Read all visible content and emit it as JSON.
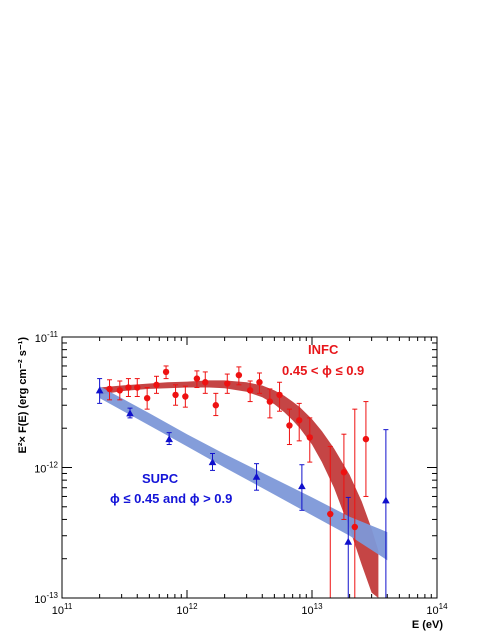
{
  "chart_data": {
    "type": "scatter",
    "title": "",
    "xlabel": "E (eV)",
    "ylabel": "E²× F(E) (erg cm⁻² s⁻¹)",
    "x_scale": "log",
    "y_scale": "log",
    "xlim": [
      100000000000.0,
      100000000000000.0
    ],
    "ylim": [
      1e-13,
      1e-11
    ],
    "x_ticks": [
      {
        "value": 100000000000.0,
        "mantissa": "10",
        "exp": "11"
      },
      {
        "value": 1000000000000.0,
        "mantissa": "10",
        "exp": "12"
      },
      {
        "value": 10000000000000.0,
        "mantissa": "10",
        "exp": "13"
      },
      {
        "value": 100000000000000.0,
        "mantissa": "10",
        "exp": "14"
      }
    ],
    "y_ticks": [
      {
        "value": 1e-13,
        "mantissa": "10",
        "exp": "-13"
      },
      {
        "value": 1e-12,
        "mantissa": "10",
        "exp": "-12"
      },
      {
        "value": 1e-11,
        "mantissa": "10",
        "exp": "-11"
      }
    ],
    "grid": false,
    "legend": "none",
    "annotations": [
      {
        "text": "INFC",
        "color": "#e8161a"
      },
      {
        "text": "0.45 < ϕ ≤ 0.9",
        "color": "#e8161a"
      },
      {
        "text": "SUPC",
        "color": "#1414d8"
      },
      {
        "text": "ϕ ≤ 0.45 and ϕ > 0.9",
        "color": "#1414d8"
      }
    ],
    "series": [
      {
        "marker": "circle",
        "color": "#ee1111",
        "points": [
          {
            "x": 240000000000.0,
            "y": 4e-12,
            "lo": 3.3e-12,
            "hi": 4.7e-12
          },
          {
            "x": 290000000000.0,
            "y": 3.9e-12,
            "lo": 3.3e-12,
            "hi": 4.6e-12
          },
          {
            "x": 340000000000.0,
            "y": 4.1e-12,
            "lo": 3.5e-12,
            "hi": 4.8e-12
          },
          {
            "x": 400000000000.0,
            "y": 4.1e-12,
            "lo": 3.5e-12,
            "hi": 4.8e-12
          },
          {
            "x": 480000000000.0,
            "y": 3.4e-12,
            "lo": 2.8e-12,
            "hi": 4.1e-12
          },
          {
            "x": 570000000000.0,
            "y": 4.3e-12,
            "lo": 3.7e-12,
            "hi": 5e-12
          },
          {
            "x": 680000000000.0,
            "y": 5.4e-12,
            "lo": 4.8e-12,
            "hi": 6e-12
          },
          {
            "x": 810000000000.0,
            "y": 3.6e-12,
            "lo": 3e-12,
            "hi": 4.3e-12
          },
          {
            "x": 970000000000.0,
            "y": 3.5e-12,
            "lo": 2.9e-12,
            "hi": 4.2e-12
          },
          {
            "x": 1200000000000.0,
            "y": 4.8e-12,
            "lo": 4.1e-12,
            "hi": 5.5e-12
          },
          {
            "x": 1400000000000.0,
            "y": 4.5e-12,
            "lo": 3.7e-12,
            "hi": 5.4e-12
          },
          {
            "x": 1700000000000.0,
            "y": 3e-12,
            "lo": 2.5e-12,
            "hi": 3.7e-12
          },
          {
            "x": 2100000000000.0,
            "y": 4.4e-12,
            "lo": 3.7e-12,
            "hi": 5.2e-12
          },
          {
            "x": 2600000000000.0,
            "y": 5.1e-12,
            "lo": 4.3e-12,
            "hi": 5.9e-12
          },
          {
            "x": 3200000000000.0,
            "y": 3.9e-12,
            "lo": 3.2e-12,
            "hi": 4.6e-12
          },
          {
            "x": 3800000000000.0,
            "y": 4.5e-12,
            "lo": 3.7e-12,
            "hi": 5.3e-12
          },
          {
            "x": 4600000000000.0,
            "y": 3.2e-12,
            "lo": 2.4e-12,
            "hi": 4e-12
          },
          {
            "x": 5500000000000.0,
            "y": 3.6e-12,
            "lo": 2.7e-12,
            "hi": 4.5e-12
          },
          {
            "x": 6600000000000.0,
            "y": 2.1e-12,
            "lo": 1.5e-12,
            "hi": 2.8e-12
          },
          {
            "x": 7900000000000.0,
            "y": 2.3e-12,
            "lo": 1.6e-12,
            "hi": 3.1e-12
          },
          {
            "x": 9600000000000.0,
            "y": 1.7e-12,
            "lo": 1.1e-12,
            "hi": 2.4e-12
          },
          {
            "x": 14000000000000.0,
            "y": 4.4e-13,
            "lo": 1e-13,
            "hi": 1.45e-12
          },
          {
            "x": 18000000000000.0,
            "y": 9.2e-13,
            "lo": 4e-13,
            "hi": 1.8e-12
          },
          {
            "x": 22000000000000.0,
            "y": 3.5e-13,
            "lo": 1e-13,
            "hi": 2.8e-12
          },
          {
            "x": 27000000000000.0,
            "y": 1.65e-12,
            "lo": 6e-13,
            "hi": 3.2e-12
          }
        ]
      },
      {
        "marker": "triangle",
        "color": "#1010cc",
        "points": [
          {
            "x": 200000000000.0,
            "y": 3.9e-12,
            "lo": 3.1e-12,
            "hi": 4.8e-12
          },
          {
            "x": 350000000000.0,
            "y": 2.6e-12,
            "lo": 2.4e-12,
            "hi": 2.85e-12
          },
          {
            "x": 720000000000.0,
            "y": 1.65e-12,
            "lo": 1.5e-12,
            "hi": 1.85e-12
          },
          {
            "x": 1600000000000.0,
            "y": 1.1e-12,
            "lo": 9.5e-13,
            "hi": 1.28e-12
          },
          {
            "x": 3600000000000.0,
            "y": 8.5e-13,
            "lo": 6.7e-13,
            "hi": 1.07e-12
          },
          {
            "x": 8300000000000.0,
            "y": 7.2e-13,
            "lo": 4.7e-13,
            "hi": 1.05e-12
          },
          {
            "x": 19500000000000.0,
            "y": 2.7e-13,
            "lo": 1e-13,
            "hi": 5.9e-13
          },
          {
            "x": 39000000000000.0,
            "y": 5.6e-13,
            "lo": 1e-13,
            "hi": 1.95e-12
          }
        ]
      }
    ],
    "bands": [
      {
        "color": "#c23b3b",
        "x": [
          200000000000.0,
          300000000000.0,
          500000000000.0,
          700000000000.0,
          1000000000000.0,
          1500000000000.0,
          2000000000000.0,
          3000000000000.0,
          4000000000000.0,
          5000000000000.0,
          6000000000000.0,
          7000000000000.0,
          8000000000000.0,
          10000000000000.0,
          12000000000000.0,
          15000000000000.0,
          20000000000000.0,
          25000000000000.0,
          30000000000000.0,
          34000000000000.0
        ],
        "lo": [
          3.6e-12,
          3.85e-12,
          4e-12,
          4.05e-12,
          4.1e-12,
          4.1e-12,
          4.05e-12,
          3.8e-12,
          3.45e-12,
          3.05e-12,
          2.65e-12,
          2.3e-12,
          2e-12,
          1.5e-12,
          1.1e-12,
          7e-13,
          3.4e-13,
          1.8e-13,
          1.1e-13,
          1e-13
        ],
        "hi": [
          4.1e-12,
          4.25e-12,
          4.4e-12,
          4.5e-12,
          4.55e-12,
          4.65e-12,
          4.65e-12,
          4.5e-12,
          4.25e-12,
          3.9e-12,
          3.55e-12,
          3.2e-12,
          2.9e-12,
          2.35e-12,
          1.9e-12,
          1.4e-12,
          8.8e-13,
          5.5e-13,
          3.4e-13,
          2.3e-13
        ]
      },
      {
        "color": "#7d98d8",
        "x": [
          200000000000.0,
          500000000000.0,
          1000000000000.0,
          2000000000000.0,
          5000000000000.0,
          10000000000000.0,
          20000000000000.0,
          40000000000000.0
        ],
        "lo": [
          3.4e-12,
          2.1e-12,
          1.45e-12,
          1e-12,
          6.2e-13,
          4.3e-13,
          3e-13,
          1.95e-13
        ],
        "hi": [
          4.2e-12,
          2.6e-12,
          1.8e-12,
          1.27e-12,
          8.2e-13,
          5.9e-13,
          4.2e-13,
          3.2e-13
        ]
      }
    ]
  }
}
